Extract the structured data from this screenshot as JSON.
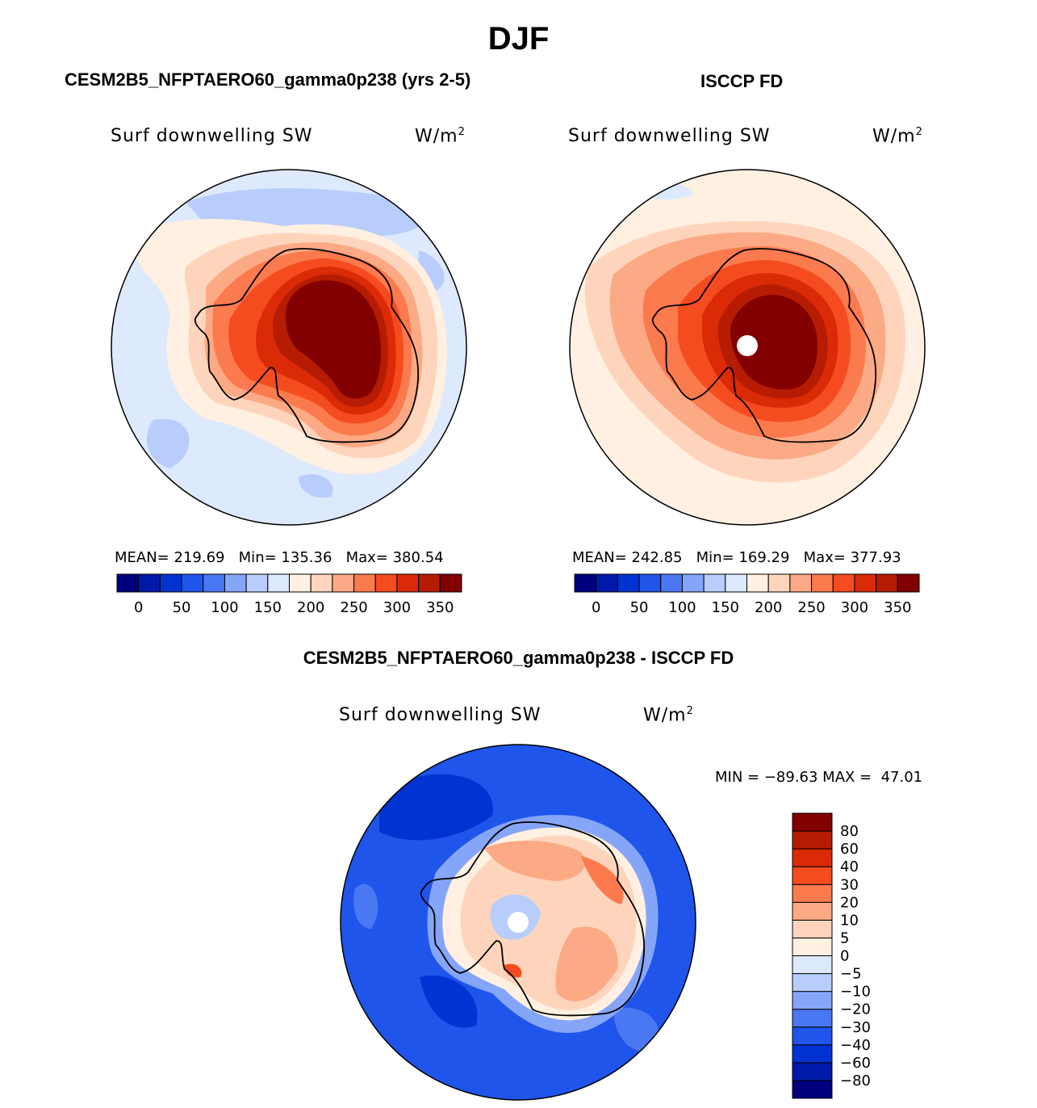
{
  "page_title": "DJF",
  "left_panel": {
    "header": "CESM2B5_NFPTAERO60_gamma0p238 (yrs 2-5)",
    "variable": "Surf downwelling SW",
    "units_base": "W/m",
    "units_exp": "2",
    "stats": {
      "mean_label": "MEAN=",
      "mean": "219.69",
      "min_label": "Min=",
      "min": "135.36",
      "max_label": "Max=",
      "max": "380.54"
    }
  },
  "right_panel": {
    "header": "ISCCP FD",
    "variable": "Surf downwelling SW",
    "units_base": "W/m",
    "units_exp": "2",
    "stats": {
      "mean_label": "MEAN=",
      "mean": "242.85",
      "min_label": "Min=",
      "min": "169.29",
      "max_label": "Max=",
      "max": "377.93"
    }
  },
  "diff_panel": {
    "header": "CESM2B5_NFPTAERO60_gamma0p238 - ISCCP FD",
    "variable": "Surf downwelling SW",
    "units_base": "W/m",
    "units_exp": "2",
    "minmax_text": "MIN = −89.63 MAX =  47.01"
  },
  "abs_colorbar": {
    "colors": [
      "#00007f",
      "#0019a8",
      "#0033d1",
      "#1f55eb",
      "#4a78f2",
      "#85a5f8",
      "#b8cdfb",
      "#dde9fd",
      "#fff0e2",
      "#fed5bc",
      "#fcaa85",
      "#fb7a4e",
      "#f54c1f",
      "#da2a06",
      "#b51c02",
      "#830000"
    ],
    "tick_labels": [
      "0",
      "50",
      "100",
      "150",
      "200",
      "250",
      "300",
      "350"
    ]
  },
  "diff_colorbar": {
    "colors": [
      "#00007f",
      "#0019a8",
      "#0033d1",
      "#1f55eb",
      "#4a78f2",
      "#85a5f8",
      "#b8cdfb",
      "#dde9fd",
      "#fff0e2",
      "#fed5bc",
      "#fcaa85",
      "#fb7a4e",
      "#f54c1f",
      "#da2a06",
      "#b51c02",
      "#830000"
    ],
    "tick_labels": [
      "80",
      "60",
      "40",
      "30",
      "20",
      "10",
      "5",
      "0",
      "−5",
      "−10",
      "−20",
      "−30",
      "−40",
      "−60",
      "−80"
    ]
  },
  "chart_data": [
    {
      "type": "heatmap",
      "title": "Surf downwelling SW",
      "subtitle": "CESM2B5_NFPTAERO60_gamma0p238 (yrs 2-5)",
      "units": "W/m2",
      "projection": "south polar stereographic",
      "levels": [
        0,
        25,
        50,
        75,
        100,
        125,
        150,
        175,
        200,
        225,
        250,
        275,
        300,
        325,
        350
      ],
      "mean": 219.69,
      "min": 135.36,
      "max": 380.54
    },
    {
      "type": "heatmap",
      "title": "Surf downwelling SW",
      "subtitle": "ISCCP FD",
      "units": "W/m2",
      "projection": "south polar stereographic",
      "levels": [
        0,
        25,
        50,
        75,
        100,
        125,
        150,
        175,
        200,
        225,
        250,
        275,
        300,
        325,
        350
      ],
      "mean": 242.85,
      "min": 169.29,
      "max": 377.93
    },
    {
      "type": "heatmap",
      "title": "Surf downwelling SW",
      "subtitle": "CESM2B5_NFPTAERO60_gamma0p238 - ISCCP FD",
      "units": "W/m2",
      "projection": "south polar stereographic",
      "levels": [
        -80,
        -60,
        -40,
        -30,
        -20,
        -10,
        -5,
        0,
        5,
        10,
        20,
        30,
        40,
        60,
        80
      ],
      "min": -89.63,
      "max": 47.01
    }
  ]
}
